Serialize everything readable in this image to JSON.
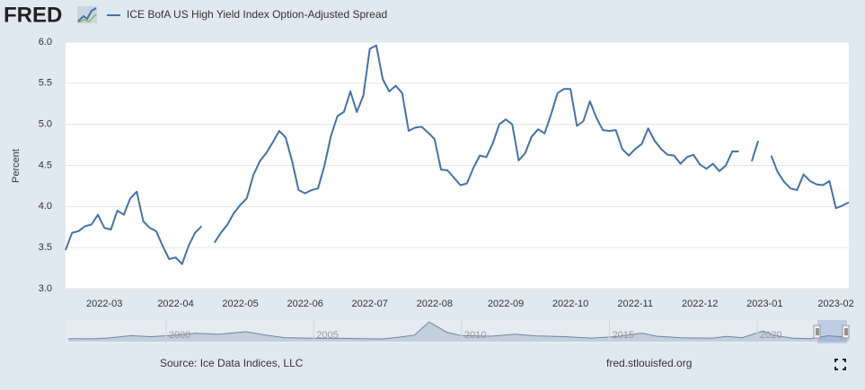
{
  "logo": "FRED",
  "chart_data": [
    {
      "type": "line",
      "y_label": "Percent",
      "categories": [
        null,
        null,
        null,
        null,
        null,
        null,
        "2022-03",
        null,
        null,
        null,
        null,
        null,
        null,
        null,
        null,
        null,
        null,
        "2022-04",
        null,
        null,
        null,
        null,
        null,
        null,
        null,
        null,
        null,
        "2022-05",
        null,
        null,
        null,
        null,
        null,
        null,
        null,
        null,
        null,
        "2022-06",
        null,
        null,
        null,
        null,
        null,
        null,
        null,
        null,
        null,
        "2022-07",
        null,
        null,
        null,
        null,
        null,
        null,
        null,
        null,
        null,
        "2022-08",
        null,
        null,
        null,
        null,
        null,
        null,
        null,
        null,
        null,
        null,
        "2022-09",
        null,
        null,
        null,
        null,
        null,
        null,
        null,
        null,
        null,
        "2022-10",
        null,
        null,
        null,
        null,
        null,
        null,
        null,
        null,
        null,
        "2022-11",
        null,
        null,
        null,
        null,
        null,
        null,
        null,
        null,
        null,
        "2022-12",
        null,
        null,
        null,
        null,
        null,
        null,
        null,
        null,
        null,
        "2023-01",
        null,
        null,
        null,
        null,
        null,
        null,
        null,
        null,
        null,
        null,
        "2023-02",
        null,
        null
      ],
      "series": [
        {
          "name": "ICE BofA US High Yield Index Option-Adjusted Spread",
          "color": "#4572a7",
          "values": [
            3.47,
            3.68,
            3.7,
            3.76,
            3.78,
            3.9,
            3.74,
            3.72,
            3.95,
            3.9,
            4.1,
            4.18,
            3.82,
            3.74,
            3.7,
            3.52,
            3.36,
            3.38,
            3.3,
            3.52,
            3.68,
            3.76,
            null,
            3.56,
            3.68,
            3.78,
            3.92,
            4.02,
            4.1,
            4.38,
            4.55,
            4.65,
            4.78,
            4.92,
            4.84,
            4.55,
            4.2,
            4.16,
            4.2,
            4.22,
            4.5,
            4.86,
            5.1,
            5.15,
            5.4,
            5.15,
            5.35,
            5.92,
            5.96,
            5.55,
            5.4,
            5.47,
            5.38,
            4.92,
            4.96,
            4.97,
            4.9,
            4.82,
            4.45,
            4.44,
            4.35,
            4.26,
            4.28,
            4.47,
            4.62,
            4.6,
            4.77,
            5.0,
            5.06,
            5.0,
            4.56,
            4.65,
            4.85,
            4.94,
            4.89,
            5.12,
            5.38,
            5.43,
            5.43,
            4.98,
            5.04,
            5.28,
            5.08,
            4.93,
            4.92,
            4.93,
            4.7,
            4.62,
            4.7,
            4.76,
            4.95,
            4.8,
            4.7,
            4.63,
            4.62,
            4.52,
            4.6,
            4.63,
            4.51,
            4.46,
            4.52,
            4.43,
            4.5,
            4.67,
            4.67,
            null,
            4.55,
            4.8,
            null,
            4.62,
            4.42,
            4.3,
            4.22,
            4.2,
            4.39,
            4.31,
            4.27,
            4.26,
            4.31,
            3.98,
            4.01,
            4.05
          ]
        }
      ],
      "ylim": [
        3,
        6
      ],
      "yticks": [
        {
          "value": 3,
          "label": "3.0"
        },
        3.5,
        {
          "value": 4,
          "label": "4.0"
        },
        4.5,
        {
          "value": 5,
          "label": "5.0"
        },
        5.5,
        {
          "value": 6,
          "label": "6.0"
        }
      ],
      "grid": true
    },
    {
      "type": "area",
      "color": "#6d86a6",
      "x": [
        1996.7,
        1997.5,
        1998.0,
        1998.8,
        1999.5,
        2000.3,
        2001.0,
        2001.8,
        2002.7,
        2003.3,
        2004.0,
        2005.0,
        2006.0,
        2007.3,
        2007.8,
        2008.4,
        2008.9,
        2009.5,
        2010.0,
        2011.0,
        2011.8,
        2012.5,
        2013.5,
        2014.4,
        2015.2,
        2016.1,
        2016.6,
        2017.5,
        2018.5,
        2018.95,
        2019.5,
        2020.2,
        2020.6,
        2021.2,
        2021.8,
        2022.4,
        2022.8,
        2023.1
      ],
      "values": [
        3.0,
        2.8,
        3.5,
        6.0,
        5.0,
        6.5,
        8.5,
        7.5,
        10.0,
        7.0,
        4.0,
        3.4,
        3.3,
        2.6,
        4.2,
        6.5,
        20.0,
        9.5,
        6.0,
        5.5,
        7.5,
        5.8,
        5.0,
        3.5,
        5.0,
        8.5,
        5.5,
        3.8,
        3.5,
        5.2,
        4.0,
        10.8,
        6.0,
        3.5,
        3.0,
        5.9,
        5.0,
        4.3
      ],
      "xlim": [
        1996.6,
        2023.1
      ],
      "ylim": [
        0,
        21
      ],
      "xticks": [
        2000,
        2005,
        2010,
        2015,
        2020
      ]
    }
  ],
  "footer": {
    "source": "Source: Ice Data Indices, LLC",
    "url": "fred.stlouisfed.org"
  }
}
